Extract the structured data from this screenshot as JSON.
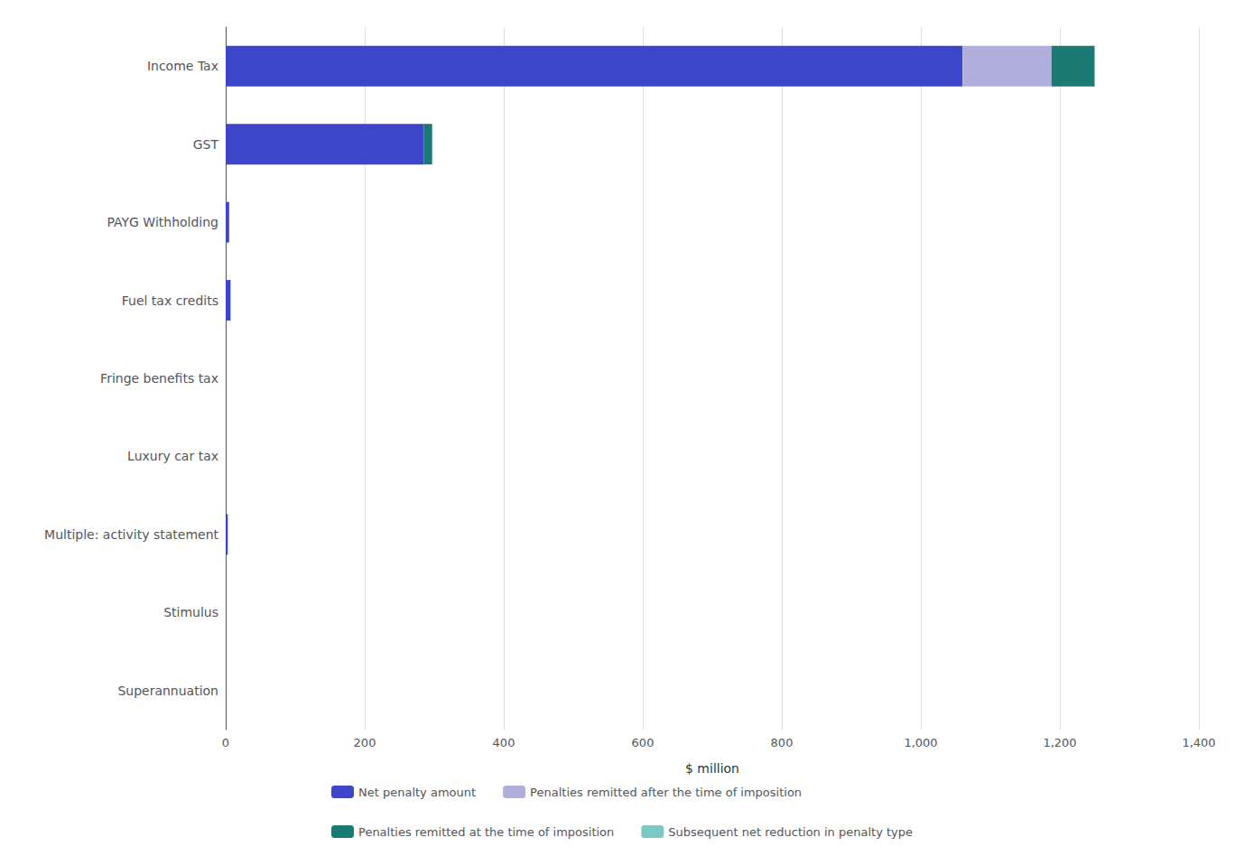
{
  "chart_data": {
    "type": "bar",
    "orientation": "horizontal",
    "stacked": true,
    "categories": [
      "Income Tax",
      "GST",
      "PAYG Withholding",
      "Fuel tax credits",
      "Fringe benefits tax",
      "Luxury car tax",
      "Multiple: activity statement",
      "Stimulus",
      "Superannuation"
    ],
    "series": [
      {
        "name": "Net penalty amount",
        "color": "#3D45C8",
        "values": [
          1060,
          285,
          5,
          7,
          0,
          0,
          3,
          0,
          0
        ]
      },
      {
        "name": "Penalties remitted after the time of imposition",
        "color": "#B0AEDD",
        "values": [
          128,
          0,
          0,
          0,
          0,
          0,
          0,
          0,
          0
        ]
      },
      {
        "name": "Penalties remitted at the time of imposition",
        "color": "#1A7A74",
        "values": [
          62,
          12,
          0,
          0,
          0,
          0,
          0,
          0,
          0
        ]
      },
      {
        "name": "Subsequent net reduction in penalty type",
        "color": "#7EC8C4",
        "values": [
          0,
          0,
          0,
          0,
          0,
          0,
          0,
          0,
          0
        ]
      }
    ],
    "xlabel": "$ million",
    "xlim": [
      0,
      1400
    ],
    "xticks": [
      0,
      200,
      400,
      600,
      800,
      {
        "value": 1000,
        "label": "1,000"
      },
      {
        "value": 1200,
        "label": "1,200"
      },
      {
        "value": 1400,
        "label": "1,400"
      }
    ],
    "grid": true,
    "legend": "bottom"
  }
}
